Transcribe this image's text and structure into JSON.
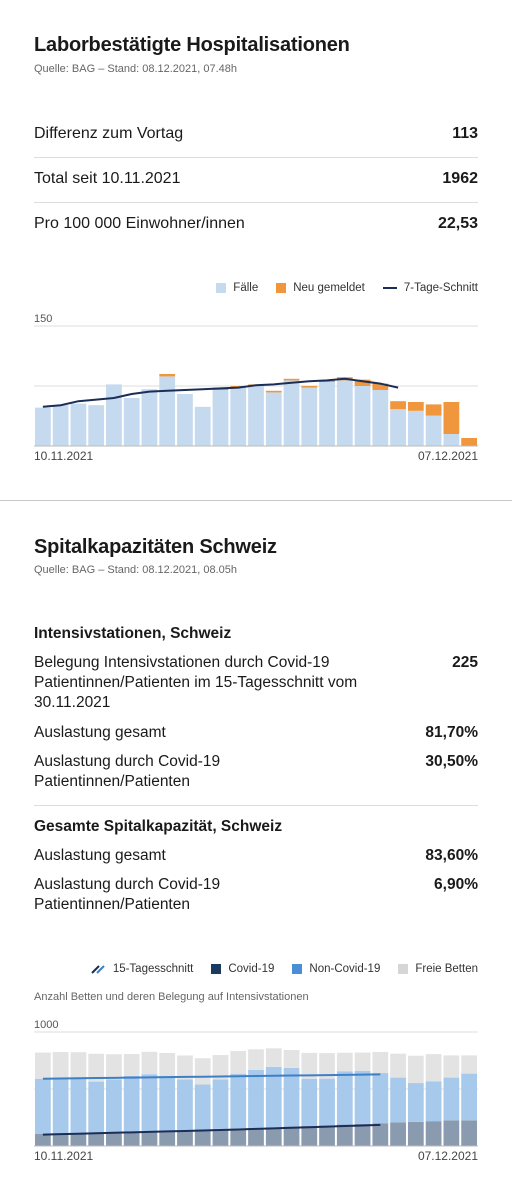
{
  "hosp": {
    "title": "Laborbestätigte Hospitalisationen",
    "source": "Quelle: BAG – Stand: 08.12.2021, 07.48h",
    "rows": [
      {
        "label": "Differenz zum Vortag",
        "value": "113"
      },
      {
        "label": "Total seit 10.11.2021",
        "value": "1962"
      },
      {
        "label": "Pro 100 000 Einwohner/innen",
        "value": "22,53"
      }
    ],
    "legend": {
      "cases": "Fälle",
      "new": "Neu gemeldet",
      "avg": "7-Tage-Schnitt"
    },
    "colors": {
      "cases": "#c5d9ef",
      "new": "#f0963c",
      "avg": "#1b2e57",
      "grid": "#dcdcdc"
    }
  },
  "cap": {
    "title": "Spitalkapazitäten Schweiz",
    "source": "Quelle: BAG – Stand: 08.12.2021, 08.05h",
    "icu_heading": "Intensivstationen, Schweiz",
    "icu_rows": [
      {
        "label": "Belegung Intensivstationen durch Covid-19 Patientinnen/Patienten im 15-Tagesschnitt vom 30.11.2021",
        "value": "225"
      },
      {
        "label": "Auslastung gesamt",
        "value": "81,70%"
      },
      {
        "label": "Auslastung durch Covid-19 Patientinnen/Patienten",
        "value": "30,50%"
      }
    ],
    "total_heading": "Gesamte Spitalkapazität, Schweiz",
    "total_rows": [
      {
        "label": "Auslastung gesamt",
        "value": "83,60%"
      },
      {
        "label": "Auslastung durch Covid-19 Patientinnen/Patienten",
        "value": "6,90%"
      }
    ],
    "legend": {
      "avg": "15-Tagesschnitt",
      "covid": "Covid-19",
      "noncovid": "Non-Covid-19",
      "free": "Freie Betten"
    },
    "chart_note": "Anzahl Betten und deren Belegung auf Intensivstationen",
    "colors": {
      "covid": "#8a9bb0",
      "noncovid": "#a7c9ec",
      "free": "#e3e3e3",
      "avg_line": "#1b2e57",
      "avg_covid_legend": "#1b3a60",
      "avg_noncovid": "#3f7fc4"
    }
  },
  "chart_data": [
    {
      "type": "bar",
      "stacked": true,
      "x_start_label": "10.11.2021",
      "x_end_label": "07.12.2021",
      "ylim": [
        0,
        150
      ],
      "yticks": [
        150
      ],
      "grid": true,
      "legend_position": "top-right",
      "series": [
        {
          "name": "Fälle",
          "values": [
            48,
            51,
            53,
            51,
            77,
            60,
            71,
            87,
            65,
            49,
            70,
            73,
            75,
            67,
            82,
            73,
            80,
            82,
            75,
            70,
            46,
            44,
            38,
            15,
            0
          ]
        },
        {
          "name": "Neu gemeldet",
          "values": [
            0,
            0,
            0,
            0,
            0,
            0,
            0,
            3,
            0,
            0,
            3,
            2,
            2,
            2,
            2,
            2,
            2,
            4,
            8,
            8,
            10,
            11,
            14,
            40,
            10
          ]
        }
      ],
      "line": {
        "name": "7-Tage-Schnitt",
        "values": [
          49,
          51,
          56,
          58,
          60,
          65,
          68,
          69,
          70,
          71,
          72,
          73,
          76,
          77,
          79,
          81,
          82,
          84,
          81,
          78,
          73
        ]
      }
    },
    {
      "type": "bar",
      "stacked": true,
      "title": "Anzahl Betten und deren Belegung auf Intensivstationen",
      "x_start_label": "10.11.2021",
      "x_end_label": "07.12.2021",
      "ylim": [
        0,
        1000
      ],
      "yticks": [
        1000
      ],
      "grid": true,
      "legend_position": "top-right",
      "series": [
        {
          "name": "Covid-19",
          "values": [
            105,
            108,
            112,
            118,
            122,
            126,
            130,
            134,
            138,
            144,
            150,
            155,
            160,
            165,
            170,
            176,
            182,
            188,
            194,
            200,
            208,
            212,
            218,
            225,
            225
          ]
        },
        {
          "name": "Non-Covid-19",
          "values": [
            485,
            491,
            483,
            447,
            462,
            489,
            500,
            480,
            446,
            396,
            433,
            479,
            507,
            529,
            515,
            414,
            409,
            468,
            466,
            440,
            392,
            340,
            348,
            375,
            410
          ]
        },
        {
          "name": "Freie Betten",
          "values": [
            230,
            225,
            228,
            244,
            221,
            192,
            196,
            202,
            210,
            230,
            215,
            200,
            181,
            163,
            157,
            227,
            224,
            162,
            160,
            185,
            210,
            240,
            240,
            195,
            160
          ]
        }
      ],
      "lines": [
        {
          "name": "Covid-19",
          "values": [
            100,
            104,
            108,
            112,
            116,
            120,
            124,
            128,
            132,
            136,
            140,
            145,
            150,
            155,
            160,
            165,
            170,
            175,
            180,
            185
          ]
        },
        {
          "name": "Non-Covid-19",
          "values": [
            590,
            592,
            594,
            596,
            598,
            600,
            602,
            604,
            606,
            608,
            610,
            612,
            614,
            616,
            618,
            620,
            622,
            624,
            626,
            628
          ]
        }
      ]
    }
  ]
}
